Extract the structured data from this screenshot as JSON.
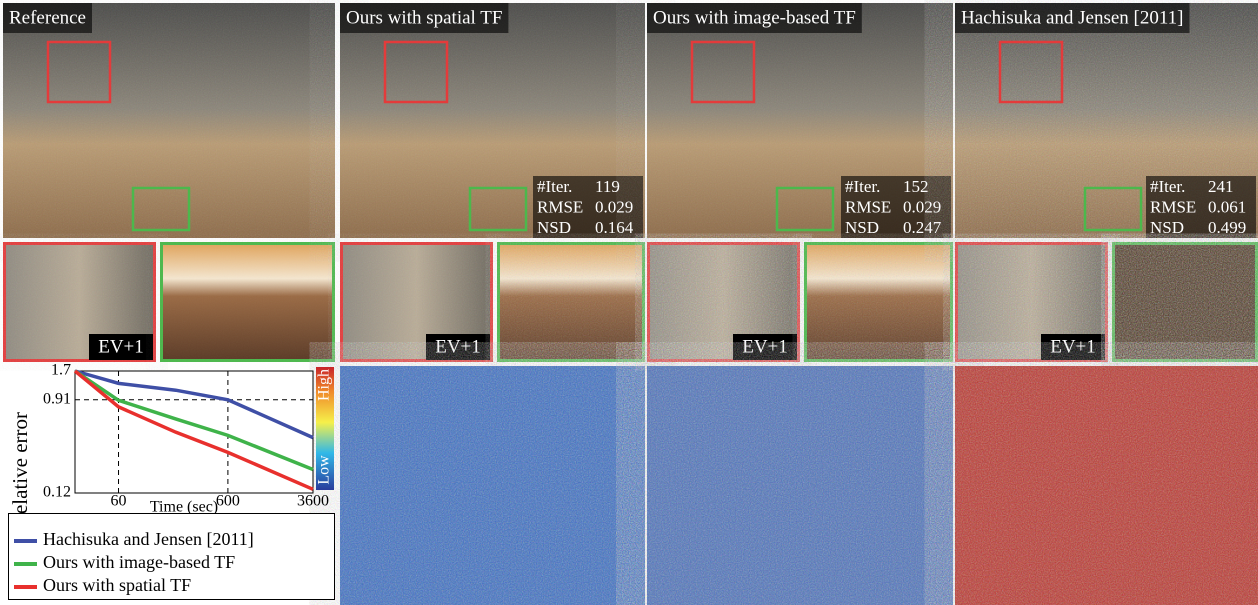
{
  "panels": [
    {
      "title": "Reference"
    },
    {
      "title": "Ours with spatial TF",
      "stats": [
        {
          "label": "#Iter.",
          "value": 119
        },
        {
          "label": "RMSE",
          "value": 0.029
        },
        {
          "label": "NSD",
          "value": 0.164
        }
      ]
    },
    {
      "title": "Ours with image-based TF",
      "stats": [
        {
          "label": "#Iter.",
          "value": 152
        },
        {
          "label": "RMSE",
          "value": 0.029
        },
        {
          "label": "NSD",
          "value": 0.247
        }
      ]
    },
    {
      "title": "Hachisuka and Jensen [2011]",
      "stats": [
        {
          "label": "#Iter.",
          "value": 241
        },
        {
          "label": "RMSE",
          "value": 0.061
        },
        {
          "label": "NSD",
          "value": 0.499
        }
      ]
    }
  ],
  "crop_label": "EV+1",
  "chart_data": {
    "type": "line",
    "y_label": "Relative error",
    "x_label": "Time (sec)",
    "x": [
      24,
      60,
      200,
      600,
      3600
    ],
    "log_x": true,
    "log_y": true,
    "xlim": [
      24,
      3600
    ],
    "xticks": [
      60,
      600,
      3600
    ],
    "ylim": [
      0.12,
      1.7
    ],
    "yticks": [
      0.12,
      0.91,
      1.7
    ],
    "grid": true,
    "series": [
      {
        "name": "Hachisuka and Jensen [2011]",
        "color": "#3f4fa6",
        "values": [
          1.7,
          1.3,
          1.12,
          0.91,
          0.4
        ]
      },
      {
        "name": "Ours with image-based TF",
        "color": "#3fb34a",
        "values": [
          1.7,
          0.9,
          0.6,
          0.42,
          0.2
        ]
      },
      {
        "name": "Ours with spatial TF",
        "color": "#e8302d",
        "values": [
          1.7,
          0.78,
          0.45,
          0.29,
          0.13
        ]
      }
    ],
    "colorbar": {
      "high": "High",
      "low": "Low"
    },
    "legend": "bottom-left"
  }
}
